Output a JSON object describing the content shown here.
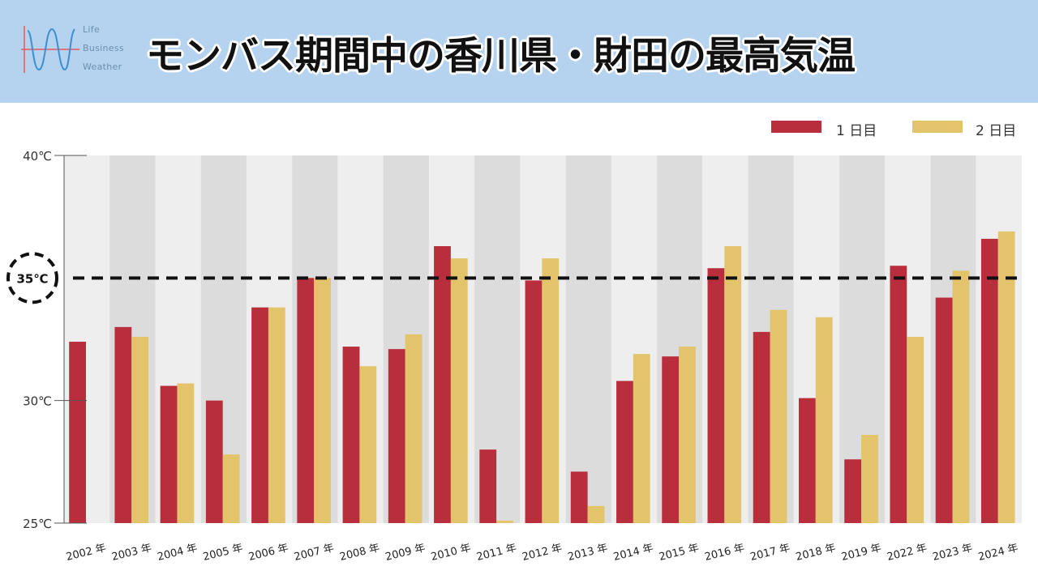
{
  "header": {
    "title": "モンバス期間中の香川県・財田の最高気温",
    "logo_lines": [
      "Life",
      "Business",
      "Weather"
    ],
    "background_color": "#b5d3ee"
  },
  "legend": [
    {
      "label": "1 日目",
      "color": "#b82e3c"
    },
    {
      "label": "2 日目",
      "color": "#e4c46b"
    }
  ],
  "threshold": {
    "value": 35,
    "label": "35℃"
  },
  "chart_data": {
    "type": "bar",
    "title": "モンバス期間中の香川県・財田の最高気温",
    "categories": [
      "2002 年",
      "2003 年",
      "2004 年",
      "2005 年",
      "2006 年",
      "2007 年",
      "2008 年",
      "2009 年",
      "2010 年",
      "2011 年",
      "2012 年",
      "2013 年",
      "2014 年",
      "2015 年",
      "2016 年",
      "2017 年",
      "2018 年",
      "2019 年",
      "2022 年",
      "2023 年",
      "2024 年"
    ],
    "series": [
      {
        "name": "1 日目",
        "color": "#b82e3c",
        "values": [
          32.4,
          33.0,
          30.6,
          30.0,
          33.8,
          35.0,
          32.2,
          32.1,
          36.3,
          28.0,
          34.9,
          27.1,
          30.8,
          31.8,
          35.4,
          32.8,
          30.1,
          27.6,
          35.5,
          34.2,
          36.6
        ]
      },
      {
        "name": "2 日目",
        "color": "#e4c46b",
        "values": [
          null,
          32.6,
          30.7,
          27.8,
          33.8,
          35.0,
          31.4,
          32.7,
          35.8,
          25.1,
          35.8,
          25.7,
          31.9,
          32.2,
          36.3,
          33.7,
          33.4,
          28.6,
          32.6,
          35.3,
          36.9
        ]
      }
    ],
    "y_ticks": [
      {
        "value": 40,
        "label": "40℃"
      },
      {
        "value": 30,
        "label": "30℃"
      },
      {
        "value": 25,
        "label": "25℃"
      }
    ],
    "ylim": [
      25,
      40
    ],
    "xlabel": "",
    "ylabel": ""
  }
}
